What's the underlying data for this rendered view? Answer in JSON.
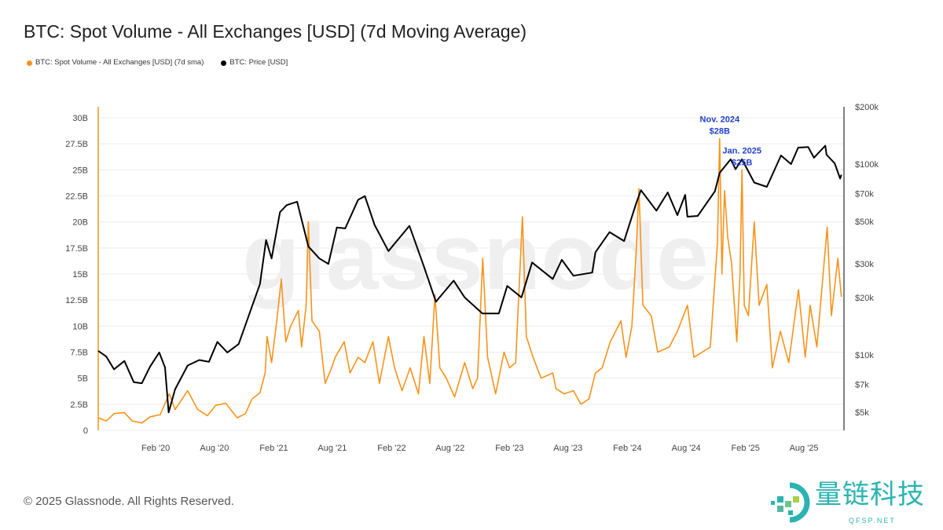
{
  "chart_data": {
    "type": "line",
    "title": "BTC: Spot Volume - All Exchanges [USD] (7d Moving Average)",
    "legend_position": "top-left",
    "grid": true,
    "xlim": [
      "2019-08-07",
      "2025-12-03"
    ],
    "x_ticks": [
      {
        "date": "2020-02-01",
        "label": "Feb '20"
      },
      {
        "date": "2020-08-01",
        "label": "Aug '20"
      },
      {
        "date": "2021-02-01",
        "label": "Feb '21"
      },
      {
        "date": "2021-08-01",
        "label": "Aug '21"
      },
      {
        "date": "2022-02-01",
        "label": "Feb '22"
      },
      {
        "date": "2022-08-01",
        "label": "Aug '22"
      },
      {
        "date": "2023-02-01",
        "label": "Feb '23"
      },
      {
        "date": "2023-08-01",
        "label": "Aug '23"
      },
      {
        "date": "2024-02-01",
        "label": "Feb '24"
      },
      {
        "date": "2024-08-01",
        "label": "Aug '24"
      },
      {
        "date": "2025-02-01",
        "label": "Feb '25"
      },
      {
        "date": "2025-08-01",
        "label": "Aug '25"
      }
    ],
    "y_left": {
      "scale": "linear",
      "lim": [
        0,
        30
      ],
      "ticks": [
        0,
        2.5,
        5,
        7.5,
        10,
        12.5,
        15,
        17.5,
        20,
        22.5,
        25,
        27.5,
        30
      ],
      "tick_labels": [
        "0",
        "2.5B",
        "5B",
        "7.5B",
        "10B",
        "12.5B",
        "15B",
        "17.5B",
        "20B",
        "22.5B",
        "25B",
        "27.5B",
        "30B"
      ]
    },
    "y_right": {
      "scale": "log",
      "lim": [
        3800,
        200000
      ],
      "ticks": [
        5000,
        7000,
        10000,
        20000,
        30000,
        50000,
        70000,
        100000,
        200000
      ],
      "tick_labels": [
        "$5k",
        "$7k",
        "$10k",
        "$20k",
        "$30k",
        "$50k",
        "$70k",
        "$100k",
        "$200k"
      ]
    },
    "series": [
      {
        "name": "BTC: Spot Volume - All Exchanges [USD] (7d sma)",
        "axis": "left",
        "color": "#f7931a",
        "unit": "B USD",
        "points": [
          [
            "2019-08-07",
            1.2
          ],
          [
            "2019-09-01",
            0.9
          ],
          [
            "2019-09-25",
            1.6
          ],
          [
            "2019-10-27",
            1.7
          ],
          [
            "2019-11-20",
            0.9
          ],
          [
            "2019-12-20",
            0.7
          ],
          [
            "2020-01-15",
            1.3
          ],
          [
            "2020-02-15",
            1.5
          ],
          [
            "2020-03-14",
            3.5
          ],
          [
            "2020-04-01",
            2.0
          ],
          [
            "2020-05-10",
            3.8
          ],
          [
            "2020-06-10",
            2.0
          ],
          [
            "2020-07-10",
            1.4
          ],
          [
            "2020-08-05",
            2.4
          ],
          [
            "2020-09-05",
            2.6
          ],
          [
            "2020-10-10",
            1.2
          ],
          [
            "2020-11-05",
            1.6
          ],
          [
            "2020-11-25",
            3.0
          ],
          [
            "2020-12-20",
            3.6
          ],
          [
            "2021-01-05",
            5.5
          ],
          [
            "2021-01-11",
            9.0
          ],
          [
            "2021-01-25",
            6.5
          ],
          [
            "2021-02-10",
            10.5
          ],
          [
            "2021-02-24",
            14.5
          ],
          [
            "2021-03-10",
            8.5
          ],
          [
            "2021-03-25",
            10.0
          ],
          [
            "2021-04-18",
            11.5
          ],
          [
            "2021-04-28",
            8.0
          ],
          [
            "2021-05-12",
            12.0
          ],
          [
            "2021-05-19",
            20.0
          ],
          [
            "2021-05-30",
            10.5
          ],
          [
            "2021-06-22",
            9.5
          ],
          [
            "2021-07-10",
            4.5
          ],
          [
            "2021-07-30",
            6.0
          ],
          [
            "2021-08-10",
            7.0
          ],
          [
            "2021-09-07",
            8.5
          ],
          [
            "2021-09-25",
            5.5
          ],
          [
            "2021-10-20",
            7.0
          ],
          [
            "2021-11-10",
            6.5
          ],
          [
            "2021-12-05",
            8.5
          ],
          [
            "2021-12-25",
            4.5
          ],
          [
            "2022-01-22",
            9.0
          ],
          [
            "2022-02-10",
            6.0
          ],
          [
            "2022-03-05",
            3.8
          ],
          [
            "2022-03-30",
            6.0
          ],
          [
            "2022-04-25",
            3.5
          ],
          [
            "2022-05-12",
            9.0
          ],
          [
            "2022-05-30",
            4.5
          ],
          [
            "2022-06-15",
            13.0
          ],
          [
            "2022-06-30",
            6.0
          ],
          [
            "2022-07-20",
            5.0
          ],
          [
            "2022-08-15",
            3.2
          ],
          [
            "2022-09-15",
            6.5
          ],
          [
            "2022-10-10",
            4.0
          ],
          [
            "2022-10-25",
            5.0
          ],
          [
            "2022-11-10",
            16.5
          ],
          [
            "2022-11-25",
            7.0
          ],
          [
            "2022-12-20",
            3.5
          ],
          [
            "2023-01-15",
            7.5
          ],
          [
            "2023-02-01",
            6.0
          ],
          [
            "2023-02-20",
            6.5
          ],
          [
            "2023-03-13",
            20.5
          ],
          [
            "2023-03-25",
            9.0
          ],
          [
            "2023-04-15",
            7.0
          ],
          [
            "2023-05-10",
            5.0
          ],
          [
            "2023-06-15",
            5.5
          ],
          [
            "2023-06-25",
            4.0
          ],
          [
            "2023-07-20",
            3.5
          ],
          [
            "2023-08-18",
            3.8
          ],
          [
            "2023-09-10",
            2.5
          ],
          [
            "2023-10-05",
            3.0
          ],
          [
            "2023-10-25",
            5.5
          ],
          [
            "2023-11-15",
            6.0
          ],
          [
            "2023-12-10",
            8.5
          ],
          [
            "2024-01-12",
            10.5
          ],
          [
            "2024-01-28",
            7.0
          ],
          [
            "2024-02-15",
            10.0
          ],
          [
            "2024-02-29",
            17.5
          ],
          [
            "2024-03-08",
            23.2
          ],
          [
            "2024-03-20",
            12.0
          ],
          [
            "2024-04-15",
            11.0
          ],
          [
            "2024-05-05",
            7.5
          ],
          [
            "2024-06-10",
            8.0
          ],
          [
            "2024-07-05",
            9.5
          ],
          [
            "2024-08-05",
            12.0
          ],
          [
            "2024-08-25",
            7.0
          ],
          [
            "2024-09-20",
            7.5
          ],
          [
            "2024-10-15",
            8.0
          ],
          [
            "2024-11-06",
            18.0
          ],
          [
            "2024-11-13",
            28.0
          ],
          [
            "2024-11-20",
            15.0
          ],
          [
            "2024-11-28",
            23.0
          ],
          [
            "2024-12-08",
            18.5
          ],
          [
            "2024-12-20",
            16.0
          ],
          [
            "2025-01-05",
            8.5
          ],
          [
            "2025-01-15",
            15.0
          ],
          [
            "2025-01-21",
            25.0
          ],
          [
            "2025-01-28",
            12.0
          ],
          [
            "2025-02-10",
            11.0
          ],
          [
            "2025-02-28",
            20.0
          ],
          [
            "2025-03-15",
            12.0
          ],
          [
            "2025-04-08",
            14.0
          ],
          [
            "2025-04-25",
            6.0
          ],
          [
            "2025-05-20",
            9.5
          ],
          [
            "2025-06-15",
            6.5
          ],
          [
            "2025-07-15",
            13.5
          ],
          [
            "2025-08-05",
            7.0
          ],
          [
            "2025-08-20",
            12.0
          ],
          [
            "2025-09-10",
            8.0
          ],
          [
            "2025-10-12",
            19.5
          ],
          [
            "2025-10-25",
            11.0
          ],
          [
            "2025-11-05",
            14.0
          ],
          [
            "2025-11-14",
            16.5
          ],
          [
            "2025-11-25",
            12.8
          ]
        ]
      },
      {
        "name": "BTC: Price [USD]",
        "axis": "right",
        "color": "#000000",
        "unit": "USD",
        "points": [
          [
            "2019-08-07",
            10500
          ],
          [
            "2019-09-01",
            9800
          ],
          [
            "2019-09-25",
            8400
          ],
          [
            "2019-10-27",
            9300
          ],
          [
            "2019-11-25",
            7200
          ],
          [
            "2019-12-20",
            7100
          ],
          [
            "2020-01-15",
            8700
          ],
          [
            "2020-02-12",
            10300
          ],
          [
            "2020-03-01",
            8600
          ],
          [
            "2020-03-12",
            5000
          ],
          [
            "2020-04-01",
            6600
          ],
          [
            "2020-05-10",
            8800
          ],
          [
            "2020-06-15",
            9400
          ],
          [
            "2020-07-15",
            9200
          ],
          [
            "2020-08-10",
            11700
          ],
          [
            "2020-09-10",
            10300
          ],
          [
            "2020-10-15",
            11400
          ],
          [
            "2020-11-15",
            16000
          ],
          [
            "2020-12-20",
            23500
          ],
          [
            "2021-01-08",
            40000
          ],
          [
            "2021-01-25",
            32000
          ],
          [
            "2021-02-20",
            56000
          ],
          [
            "2021-03-13",
            61000
          ],
          [
            "2021-04-14",
            63500
          ],
          [
            "2021-05-19",
            37000
          ],
          [
            "2021-06-22",
            32000
          ],
          [
            "2021-07-20",
            30000
          ],
          [
            "2021-08-15",
            46500
          ],
          [
            "2021-09-10",
            46000
          ],
          [
            "2021-10-20",
            65000
          ],
          [
            "2021-11-10",
            68000
          ],
          [
            "2021-12-10",
            48000
          ],
          [
            "2022-01-22",
            35000
          ],
          [
            "2022-03-28",
            47500
          ],
          [
            "2022-05-12",
            29000
          ],
          [
            "2022-06-18",
            19000
          ],
          [
            "2022-08-12",
            24500
          ],
          [
            "2022-09-15",
            20000
          ],
          [
            "2022-11-09",
            16500
          ],
          [
            "2022-12-30",
            16500
          ],
          [
            "2023-01-25",
            23000
          ],
          [
            "2023-03-10",
            20000
          ],
          [
            "2023-04-12",
            30500
          ],
          [
            "2023-06-15",
            25000
          ],
          [
            "2023-07-13",
            31500
          ],
          [
            "2023-08-18",
            26000
          ],
          [
            "2023-10-15",
            27000
          ],
          [
            "2023-10-25",
            34500
          ],
          [
            "2023-12-08",
            44000
          ],
          [
            "2024-01-22",
            39500
          ],
          [
            "2024-02-28",
            62000
          ],
          [
            "2024-03-14",
            73000
          ],
          [
            "2024-05-01",
            57000
          ],
          [
            "2024-06-05",
            71000
          ],
          [
            "2024-07-05",
            54000
          ],
          [
            "2024-07-29",
            69000
          ],
          [
            "2024-08-05",
            53000
          ],
          [
            "2024-09-06",
            53500
          ],
          [
            "2024-10-29",
            72000
          ],
          [
            "2024-11-13",
            90000
          ],
          [
            "2024-12-17",
            106000
          ],
          [
            "2025-01-01",
            94000
          ],
          [
            "2025-01-21",
            106000
          ],
          [
            "2025-02-28",
            80000
          ],
          [
            "2025-04-08",
            76000
          ],
          [
            "2025-05-22",
            111000
          ],
          [
            "2025-06-22",
            100000
          ],
          [
            "2025-07-14",
            122000
          ],
          [
            "2025-08-14",
            123000
          ],
          [
            "2025-09-01",
            108000
          ],
          [
            "2025-10-06",
            125000
          ],
          [
            "2025-10-10",
            112000
          ],
          [
            "2025-11-04",
            101000
          ],
          [
            "2025-11-21",
            84000
          ],
          [
            "2025-11-25",
            88000
          ]
        ]
      }
    ],
    "annotations": [
      {
        "date": "2024-11-13",
        "value": 28,
        "lines": [
          "Nov. 2024",
          "$28B"
        ],
        "color": "#2140c8"
      },
      {
        "date": "2025-01-21",
        "value": 25,
        "lines": [
          "Jan. 2025",
          "$25B"
        ],
        "color": "#2140c8"
      }
    ]
  },
  "watermark": "glassnode",
  "footer": {
    "copyright": "© 2025 Glassnode. All Rights Reserved."
  },
  "logo": {
    "name": "量链科技",
    "site": "QFSP.NET"
  }
}
